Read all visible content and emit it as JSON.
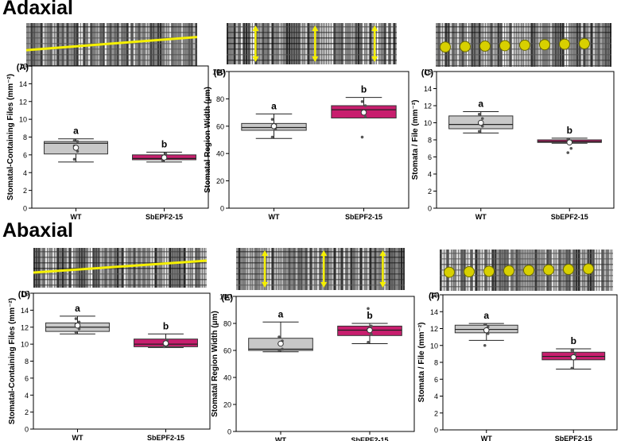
{
  "sections": [
    {
      "title": "Adaxial"
    },
    {
      "title": "Abaxial"
    }
  ],
  "colors": {
    "wt_box": "#c8c8c8",
    "mutant_box": "#c81e6e",
    "marker_line": "#f5f000",
    "stomata": "#d8d000"
  },
  "chart_data": [
    {
      "type": "box",
      "panel_label": "(A)",
      "ylabel": "Stomatal-Containing Files (mm$^{-2}$)",
      "ylabel_text": "Stomatal-Containing Files (mm⁻²)",
      "ylim": [
        0,
        16
      ],
      "yticks": [
        0,
        2,
        4,
        6,
        8,
        10,
        12,
        14,
        16
      ],
      "categories": [
        "WT",
        "SbEPF2-15"
      ],
      "series": [
        {
          "q1": 6.1,
          "median": 7.3,
          "q3": 7.5,
          "whisker_low": 5.2,
          "whisker_high": 7.8,
          "mean": 6.8,
          "letter": "a",
          "points": [
            5.5,
            6.4,
            7.0,
            7.5,
            7.6
          ]
        },
        {
          "q1": 5.45,
          "median": 5.6,
          "q3": 6.0,
          "whisker_low": 5.2,
          "whisker_high": 6.3,
          "mean": 5.7,
          "letter": "b",
          "points": [
            5.4,
            5.6,
            5.8,
            6.1
          ]
        }
      ]
    },
    {
      "type": "box",
      "panel_label": "(B)",
      "ylabel_text": "Stomatal Region Width (μm)",
      "ylim": [
        0,
        100
      ],
      "yticks": [
        0,
        20,
        40,
        60,
        80,
        100
      ],
      "categories": [
        "WT",
        "SbEPF2-15"
      ],
      "series": [
        {
          "q1": 57,
          "median": 59,
          "q3": 62,
          "whisker_low": 51,
          "whisker_high": 69,
          "mean": 60,
          "letter": "a",
          "points": [
            52,
            58,
            60,
            61,
            65
          ]
        },
        {
          "q1": 66,
          "median": 72,
          "q3": 75,
          "whisker_low": 66,
          "whisker_high": 81,
          "mean": 70,
          "letter": "b",
          "points": [
            52,
            67,
            70,
            75,
            78
          ]
        }
      ]
    },
    {
      "type": "box",
      "panel_label": "(C)",
      "ylabel_text": "Stomata / File (mm⁻²)",
      "ylim": [
        0,
        16
      ],
      "yticks": [
        0,
        2,
        4,
        6,
        8,
        10,
        12,
        14,
        16
      ],
      "categories": [
        "WT",
        "SbEPF2-15"
      ],
      "series": [
        {
          "q1": 9.3,
          "median": 9.8,
          "q3": 10.8,
          "whisker_low": 8.8,
          "whisker_high": 11.3,
          "mean": 10.0,
          "letter": "a",
          "points": [
            9.0,
            9.6,
            10.0,
            10.5,
            11.0
          ]
        },
        {
          "q1": 7.7,
          "median": 7.8,
          "q3": 8.0,
          "whisker_low": 7.6,
          "whisker_high": 8.2,
          "mean": 7.7,
          "letter": "b",
          "points": [
            6.5,
            7.0,
            7.7,
            7.9,
            8.1
          ]
        }
      ]
    },
    {
      "type": "box",
      "panel_label": "(D)",
      "ylabel_text": "Stomatal-Containing Files (mm⁻²)",
      "ylim": [
        0,
        16
      ],
      "yticks": [
        0,
        2,
        4,
        6,
        8,
        10,
        12,
        14,
        16
      ],
      "categories": [
        "WT",
        "SbEPF2-15"
      ],
      "series": [
        {
          "q1": 11.5,
          "median": 12.0,
          "q3": 12.5,
          "whisker_low": 11.2,
          "whisker_high": 13.3,
          "mean": 12.2,
          "letter": "a",
          "points": [
            11.4,
            11.8,
            12.3,
            12.6,
            13.0
          ]
        },
        {
          "q1": 9.7,
          "median": 10.0,
          "q3": 10.6,
          "whisker_low": 9.6,
          "whisker_high": 11.2,
          "mean": 10.1,
          "letter": "b",
          "points": [
            9.7,
            9.9,
            10.2,
            10.5
          ]
        }
      ]
    },
    {
      "type": "box",
      "panel_label": "(E)",
      "ylabel_text": "Stomatal Region Width (μm)",
      "ylim": [
        0,
        100
      ],
      "yticks": [
        0,
        20,
        40,
        60,
        80,
        100
      ],
      "categories": [
        "WT",
        "SbEPF2-15"
      ],
      "series": [
        {
          "q1": 60,
          "median": 61,
          "q3": 69,
          "whisker_low": 59,
          "whisker_high": 81,
          "mean": 65,
          "letter": "a",
          "points": [
            60,
            61,
            65,
            67,
            70
          ]
        },
        {
          "q1": 71,
          "median": 75,
          "q3": 78,
          "whisker_low": 65,
          "whisker_high": 80,
          "mean": 75,
          "letter": "b",
          "points": [
            66,
            72,
            76,
            78,
            91
          ]
        }
      ]
    },
    {
      "type": "box",
      "panel_label": "(F)",
      "ylabel_text": "Stomata / File (mm⁻²)",
      "ylim": [
        0,
        16
      ],
      "yticks": [
        0,
        2,
        4,
        6,
        8,
        10,
        12,
        14,
        16
      ],
      "categories": [
        "WT",
        "SbEPF2-15"
      ],
      "series": [
        {
          "q1": 11.5,
          "median": 11.9,
          "q3": 12.4,
          "whisker_low": 10.6,
          "whisker_high": 12.6,
          "mean": 11.8,
          "letter": "a",
          "points": [
            10.0,
            11.4,
            11.8,
            12.2,
            12.5
          ]
        },
        {
          "q1": 8.3,
          "median": 8.7,
          "q3": 9.2,
          "whisker_low": 7.2,
          "whisker_high": 9.6,
          "mean": 8.6,
          "letter": "b",
          "points": [
            7.3,
            8.4,
            8.7,
            9.0,
            9.4
          ]
        }
      ]
    }
  ]
}
